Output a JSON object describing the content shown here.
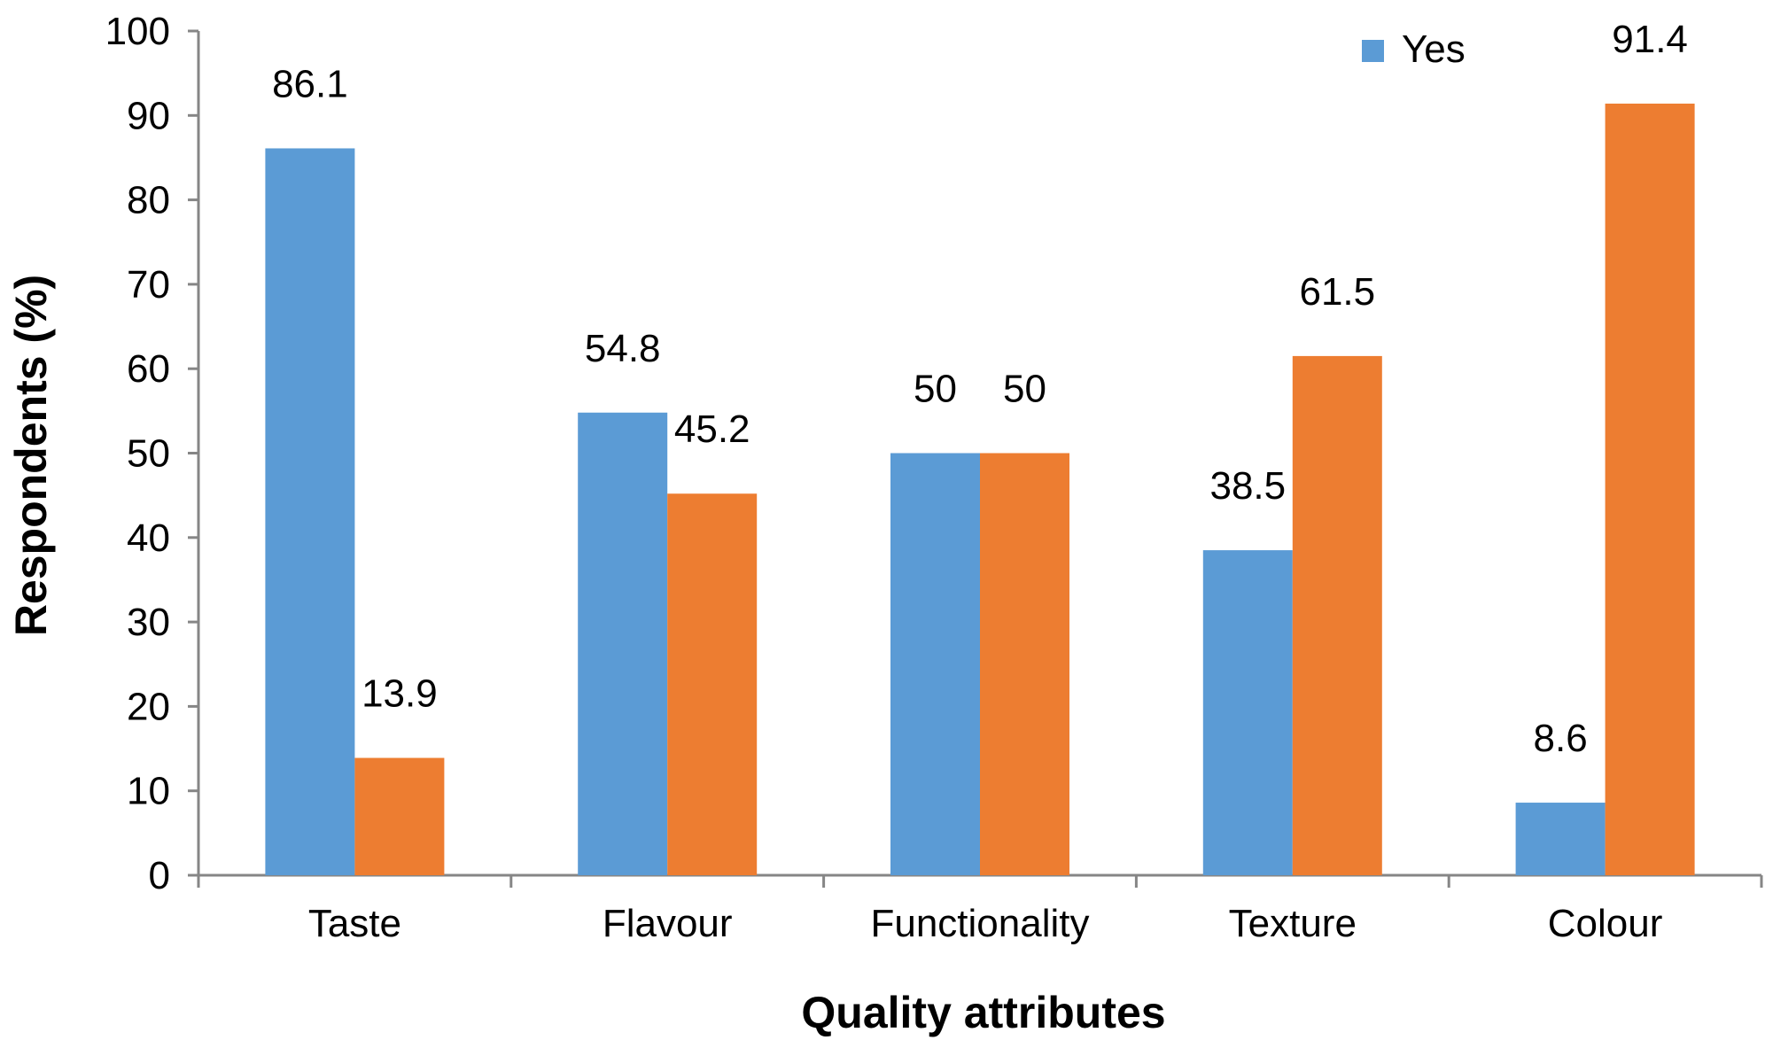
{
  "chart_data": {
    "type": "bar",
    "title": "",
    "xlabel": "Quality attributes",
    "ylabel": "Respondents (%)",
    "ylim": [
      0,
      100
    ],
    "yticks": [
      0,
      10,
      20,
      30,
      40,
      50,
      60,
      70,
      80,
      90,
      100
    ],
    "categories": [
      "Taste",
      "Flavour",
      "Functionality",
      "Texture",
      "Colour"
    ],
    "series": [
      {
        "name": "Yes",
        "color": "#5B9BD5",
        "values": [
          86.1,
          54.8,
          50,
          38.5,
          8.6
        ],
        "labels": [
          "86.1",
          "54.8",
          "50",
          "38.5",
          "8.6"
        ]
      },
      {
        "color": "#ED7D31",
        "values": [
          13.9,
          45.2,
          50,
          61.5,
          91.4
        ],
        "labels": [
          "13.9",
          "45.2",
          "50",
          "61.5",
          "91.4"
        ]
      }
    ],
    "grid": false,
    "legend": {
      "placement": "top-right",
      "entries": [
        "Yes"
      ]
    }
  }
}
